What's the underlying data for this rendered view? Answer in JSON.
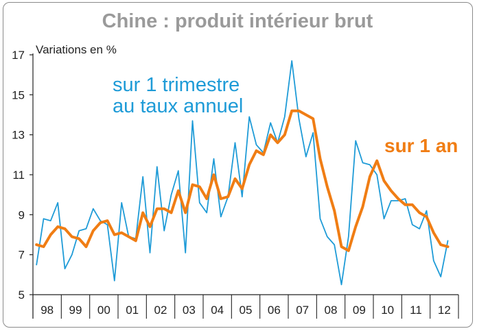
{
  "colors": {
    "quarterly": "#1e9bd7",
    "yearly": "#f07d14",
    "title": "#9a9a9a",
    "axis": "#222222"
  },
  "chart_data": {
    "type": "line",
    "title": "Chine : produit intérieur brut",
    "ylabel": "Variations en %",
    "ylim": [
      5,
      17
    ],
    "yticks": [
      5,
      7,
      9,
      11,
      13,
      15,
      17
    ],
    "xlim": [
      1998,
      2013
    ],
    "year_labels": [
      "98",
      "99",
      "00",
      "01",
      "02",
      "03",
      "04",
      "05",
      "06",
      "07",
      "08",
      "09",
      "10",
      "11",
      "12"
    ],
    "grid": false,
    "annotations": [
      {
        "series": 0,
        "lines": [
          "sur 1 trimestre",
          "au taux annuel"
        ]
      },
      {
        "series": 1,
        "lines": [
          "sur 1 an"
        ]
      }
    ],
    "series": [
      {
        "name": "sur 1 trimestre au taux annuel",
        "values": [
          6.5,
          8.8,
          8.7,
          9.6,
          6.3,
          7.0,
          8.2,
          8.3,
          9.3,
          8.7,
          8.5,
          5.7,
          9.6,
          7.9,
          7.8,
          10.9,
          7.1,
          11.4,
          8.2,
          10.0,
          11.2,
          7.1,
          13.7,
          9.6,
          9.1,
          11.8,
          8.9,
          9.9,
          12.6,
          9.9,
          13.9,
          12.5,
          12.1,
          13.6,
          12.6,
          13.9,
          16.7,
          13.8,
          11.9,
          13.1,
          8.8,
          7.9,
          7.5,
          5.5,
          7.9,
          12.7,
          11.6,
          11.5,
          11.0,
          8.8,
          9.7,
          9.7,
          9.8,
          8.5,
          8.3,
          9.2,
          6.7,
          5.9,
          7.7
        ],
        "x_start": 1998.0,
        "x_step": 0.25
      },
      {
        "name": "sur 1 an",
        "values": [
          7.5,
          7.4,
          8.0,
          8.4,
          8.3,
          7.9,
          7.8,
          7.4,
          8.2,
          8.6,
          8.7,
          8.0,
          8.1,
          7.9,
          7.7,
          9.1,
          8.4,
          9.3,
          9.3,
          9.1,
          10.2,
          9.1,
          10.5,
          10.4,
          9.8,
          11.0,
          9.8,
          9.9,
          10.8,
          10.3,
          11.5,
          12.2,
          12.0,
          13.0,
          12.6,
          13.0,
          14.2,
          14.2,
          14.0,
          13.8,
          11.8,
          10.4,
          9.2,
          7.4,
          7.2,
          8.4,
          9.4,
          10.9,
          11.7,
          10.7,
          10.2,
          9.8,
          9.5,
          9.5,
          9.1,
          8.9,
          8.1,
          7.5,
          7.4
        ],
        "x_start": 1998.0,
        "x_step": 0.25
      }
    ]
  }
}
